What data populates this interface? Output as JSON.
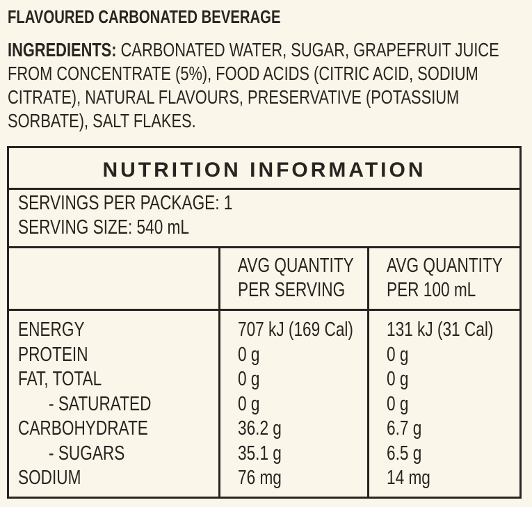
{
  "product_title": "FLAVOURED CARBONATED BEVERAGE",
  "ingredients": {
    "label": "INGREDIENTS:",
    "lines": [
      " CARBONATED WATER, SUGAR, GRAPEFRUIT JUICE",
      "FROM CONCENTRATE (5%), FOOD ACIDS (CITRIC ACID, SODIUM",
      "CITRATE), NATURAL FLAVOURS, PRESERVATIVE (POTASSIUM",
      "SORBATE), SALT FLAKES."
    ]
  },
  "nutrition": {
    "title": "NUTRITION INFORMATION",
    "servings_per_package": "SERVINGS PER PACKAGE: 1",
    "serving_size": "SERVING SIZE: 540 mL",
    "columns": [
      {
        "line1": "AVG QUANTITY",
        "line2": "PER SERVING"
      },
      {
        "line1": "AVG QUANTITY",
        "line2": "PER 100 mL"
      }
    ],
    "rows": [
      {
        "name": "ENERGY",
        "per_serving": "707 kJ (169 Cal)",
        "per_100ml": "131 kJ (31 Cal)"
      },
      {
        "name": "PROTEIN",
        "per_serving": "0 g",
        "per_100ml": "0 g"
      },
      {
        "name": "FAT, TOTAL",
        "per_serving": "0 g",
        "per_100ml": "0 g"
      },
      {
        "name": "- SATURATED",
        "per_serving": "0 g",
        "per_100ml": "0 g"
      },
      {
        "name": "CARBOHYDRATE",
        "per_serving": "36.2 g",
        "per_100ml": "6.7 g"
      },
      {
        "name": "- SUGARS",
        "per_serving": "35.1 g",
        "per_100ml": "6.5 g"
      },
      {
        "name": "SODIUM",
        "per_serving": "76 mg",
        "per_100ml": "14 mg"
      }
    ]
  }
}
